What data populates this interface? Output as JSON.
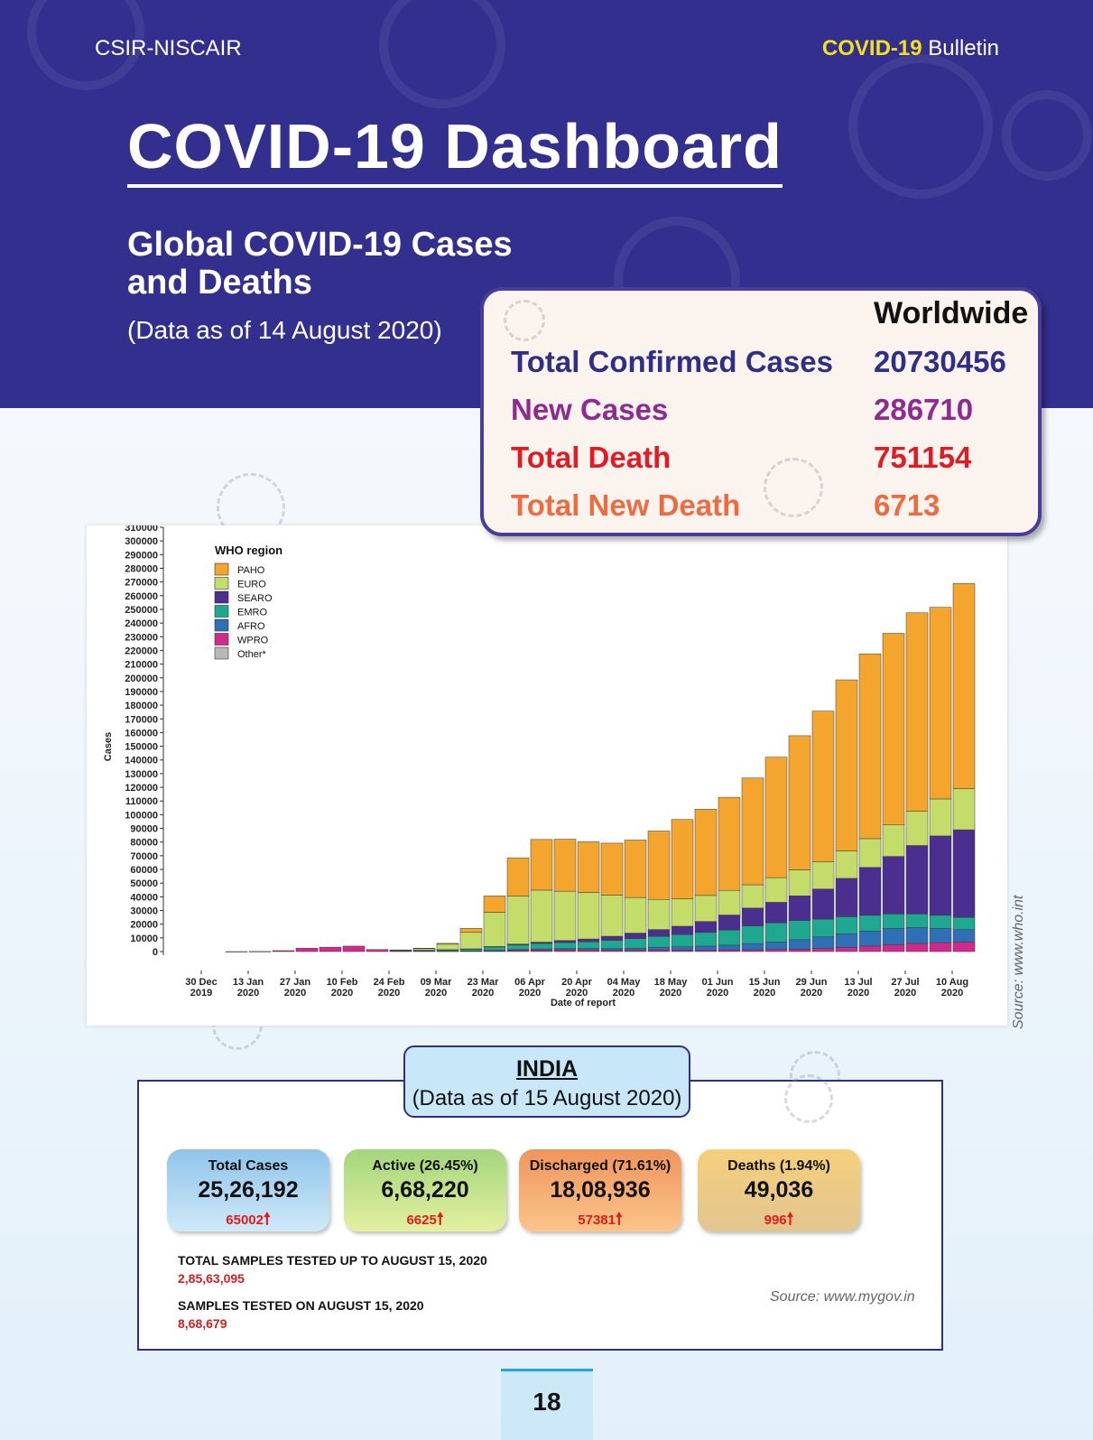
{
  "header": {
    "org": "CSIR-NISCAIR",
    "bulletin_highlight": "COVID-19",
    "bulletin_rest": "Bulletin"
  },
  "title": "COVID-19 Dashboard",
  "global": {
    "title_line1": "Global COVID-19 Cases",
    "title_line2": "and Deaths",
    "date": "(Data as of 14 August 2020)"
  },
  "worldwide": {
    "heading": "Worldwide",
    "rows": [
      {
        "label": "Total Confirmed Cases",
        "value": "20730456",
        "color": "#2f2f86"
      },
      {
        "label": "New Cases",
        "value": "286710",
        "color": "#8e2a90"
      },
      {
        "label": "Total Death",
        "value": "751154",
        "color": "#e01b24"
      },
      {
        "label": "Total New Death",
        "value": "6713",
        "color": "#ee6a40"
      }
    ]
  },
  "chart_data": {
    "type": "bar",
    "stacked": true,
    "ylabel": "Cases",
    "xlabel": "Date of report",
    "ylim": [
      0,
      310000
    ],
    "y_ticks": [
      0,
      10000,
      20000,
      30000,
      40000,
      50000,
      60000,
      70000,
      80000,
      90000,
      100000,
      110000,
      120000,
      130000,
      140000,
      150000,
      160000,
      170000,
      180000,
      190000,
      200000,
      210000,
      220000,
      230000,
      240000,
      250000,
      260000,
      270000,
      280000,
      290000,
      300000,
      310000
    ],
    "x_ticks": [
      {
        "l1": "30 Dec",
        "l2": "2019"
      },
      {
        "l1": "13 Jan",
        "l2": "2020"
      },
      {
        "l1": "27 Jan",
        "l2": "2020"
      },
      {
        "l1": "10 Feb",
        "l2": "2020"
      },
      {
        "l1": "24 Feb",
        "l2": "2020"
      },
      {
        "l1": "09 Mar",
        "l2": "2020"
      },
      {
        "l1": "23 Mar",
        "l2": "2020"
      },
      {
        "l1": "06 Apr",
        "l2": "2020"
      },
      {
        "l1": "20 Apr",
        "l2": "2020"
      },
      {
        "l1": "04 May",
        "l2": "2020"
      },
      {
        "l1": "18 May",
        "l2": "2020"
      },
      {
        "l1": "01 Jun",
        "l2": "2020"
      },
      {
        "l1": "15 Jun",
        "l2": "2020"
      },
      {
        "l1": "29 Jun",
        "l2": "2020"
      },
      {
        "l1": "13 Jul",
        "l2": "2020"
      },
      {
        "l1": "27 Jul",
        "l2": "2020"
      },
      {
        "l1": "10 Aug",
        "l2": "2020"
      }
    ],
    "legend": {
      "title": "WHO region",
      "placement": "top-left",
      "entries": [
        {
          "name": "PAHO",
          "color": "#f3a52d"
        },
        {
          "name": "EURO",
          "color": "#c3dc6a"
        },
        {
          "name": "SEARO",
          "color": "#4a2f8f"
        },
        {
          "name": "EMRO",
          "color": "#1ea88f"
        },
        {
          "name": "AFRO",
          "color": "#2f6fb6"
        },
        {
          "name": "WPRO",
          "color": "#d12a8a"
        },
        {
          "name": "Other*",
          "color": "#b8b8b8"
        }
      ]
    },
    "series_order": [
      "WPRO",
      "AFRO",
      "EMRO",
      "SEARO",
      "EURO",
      "PAHO"
    ],
    "weekly_values": [
      {
        "week": "30 Dec 2019",
        "WPRO": 0,
        "AFRO": 0,
        "EMRO": 0,
        "SEARO": 0,
        "EURO": 0,
        "PAHO": 0
      },
      {
        "week": "06 Jan 2020",
        "WPRO": 10,
        "AFRO": 0,
        "EMRO": 0,
        "SEARO": 0,
        "EURO": 0,
        "PAHO": 0
      },
      {
        "week": "13 Jan 2020",
        "WPRO": 100,
        "AFRO": 0,
        "EMRO": 0,
        "SEARO": 0,
        "EURO": 0,
        "PAHO": 0
      },
      {
        "week": "20 Jan 2020",
        "WPRO": 700,
        "AFRO": 0,
        "EMRO": 0,
        "SEARO": 0,
        "EURO": 0,
        "PAHO": 0
      },
      {
        "week": "27 Jan 2020",
        "WPRO": 2500,
        "AFRO": 0,
        "EMRO": 0,
        "SEARO": 0,
        "EURO": 0,
        "PAHO": 0
      },
      {
        "week": "03 Feb 2020",
        "WPRO": 3200,
        "AFRO": 0,
        "EMRO": 0,
        "SEARO": 0,
        "EURO": 0,
        "PAHO": 0
      },
      {
        "week": "10 Feb 2020",
        "WPRO": 4000,
        "AFRO": 0,
        "EMRO": 0,
        "SEARO": 0,
        "EURO": 0,
        "PAHO": 0
      },
      {
        "week": "17 Feb 2020",
        "WPRO": 1500,
        "AFRO": 0,
        "EMRO": 0,
        "SEARO": 0,
        "EURO": 0,
        "PAHO": 0
      },
      {
        "week": "24 Feb 2020",
        "WPRO": 700,
        "AFRO": 0,
        "EMRO": 200,
        "SEARO": 0,
        "EURO": 300,
        "PAHO": 0
      },
      {
        "week": "02 Mar 2020",
        "WPRO": 500,
        "AFRO": 0,
        "EMRO": 700,
        "SEARO": 0,
        "EURO": 1200,
        "PAHO": 100
      },
      {
        "week": "09 Mar 2020",
        "WPRO": 300,
        "AFRO": 0,
        "EMRO": 1000,
        "SEARO": 100,
        "EURO": 4000,
        "PAHO": 600
      },
      {
        "week": "16 Mar 2020",
        "WPRO": 400,
        "AFRO": 100,
        "EMRO": 1300,
        "SEARO": 200,
        "EURO": 12000,
        "PAHO": 3000
      },
      {
        "week": "23 Mar 2020",
        "WPRO": 600,
        "AFRO": 300,
        "EMRO": 2500,
        "SEARO": 300,
        "EURO": 25000,
        "PAHO": 12000
      },
      {
        "week": "30 Mar 2020",
        "WPRO": 900,
        "AFRO": 500,
        "EMRO": 3500,
        "SEARO": 600,
        "EURO": 35000,
        "PAHO": 28000
      },
      {
        "week": "06 Apr 2020",
        "WPRO": 1200,
        "AFRO": 700,
        "EMRO": 4000,
        "SEARO": 1000,
        "EURO": 38000,
        "PAHO": 37000
      },
      {
        "week": "13 Apr 2020",
        "WPRO": 1300,
        "AFRO": 800,
        "EMRO": 4500,
        "SEARO": 1500,
        "EURO": 36000,
        "PAHO": 38000
      },
      {
        "week": "20 Apr 2020",
        "WPRO": 1200,
        "AFRO": 1000,
        "EMRO": 5000,
        "SEARO": 2000,
        "EURO": 34000,
        "PAHO": 37000
      },
      {
        "week": "27 Apr 2020",
        "WPRO": 1000,
        "AFRO": 1200,
        "EMRO": 6000,
        "SEARO": 3000,
        "EURO": 30000,
        "PAHO": 38000
      },
      {
        "week": "04 May 2020",
        "WPRO": 1000,
        "AFRO": 1500,
        "EMRO": 7000,
        "SEARO": 4000,
        "EURO": 26000,
        "PAHO": 42000
      },
      {
        "week": "11 May 2020",
        "WPRO": 1100,
        "AFRO": 2000,
        "EMRO": 8000,
        "SEARO": 5000,
        "EURO": 22000,
        "PAHO": 50000
      },
      {
        "week": "18 May 2020",
        "WPRO": 1000,
        "AFRO": 2500,
        "EMRO": 9000,
        "SEARO": 6000,
        "EURO": 20000,
        "PAHO": 58000
      },
      {
        "week": "25 May 2020",
        "WPRO": 1000,
        "AFRO": 3000,
        "EMRO": 10000,
        "SEARO": 8000,
        "EURO": 19000,
        "PAHO": 63000
      },
      {
        "week": "01 Jun 2020",
        "WPRO": 1200,
        "AFRO": 3500,
        "EMRO": 11000,
        "SEARO": 11000,
        "EURO": 18000,
        "PAHO": 68000
      },
      {
        "week": "08 Jun 2020",
        "WPRO": 1300,
        "AFRO": 4500,
        "EMRO": 13000,
        "SEARO": 13000,
        "EURO": 17000,
        "PAHO": 78000
      },
      {
        "week": "15 Jun 2020",
        "WPRO": 1500,
        "AFRO": 5500,
        "EMRO": 14000,
        "SEARO": 15000,
        "EURO": 18000,
        "PAHO": 88000
      },
      {
        "week": "22 Jun 2020",
        "WPRO": 1700,
        "AFRO": 7000,
        "EMRO": 14000,
        "SEARO": 18000,
        "EURO": 19000,
        "PAHO": 98000
      },
      {
        "week": "29 Jun 2020",
        "WPRO": 2200,
        "AFRO": 8500,
        "EMRO": 13000,
        "SEARO": 22000,
        "EURO": 20000,
        "PAHO": 110000
      },
      {
        "week": "06 Jul 2020",
        "WPRO": 3000,
        "AFRO": 10000,
        "EMRO": 12500,
        "SEARO": 28000,
        "EURO": 20000,
        "PAHO": 125000
      },
      {
        "week": "13 Jul 2020",
        "WPRO": 4000,
        "AFRO": 11000,
        "EMRO": 11500,
        "SEARO": 35000,
        "EURO": 21000,
        "PAHO": 135000
      },
      {
        "week": "20 Jul 2020",
        "WPRO": 5000,
        "AFRO": 12000,
        "EMRO": 10500,
        "SEARO": 42000,
        "EURO": 23000,
        "PAHO": 140000
      },
      {
        "week": "27 Jul 2020",
        "WPRO": 6000,
        "AFRO": 11500,
        "EMRO": 10000,
        "SEARO": 50000,
        "EURO": 25000,
        "PAHO": 145000
      },
      {
        "week": "03 Aug 2020",
        "WPRO": 6500,
        "AFRO": 10500,
        "EMRO": 9500,
        "SEARO": 58000,
        "EURO": 27000,
        "PAHO": 140000
      },
      {
        "week": "10 Aug 2020",
        "WPRO": 7000,
        "AFRO": 9000,
        "EMRO": 9000,
        "SEARO": 64000,
        "EURO": 30000,
        "PAHO": 150000
      }
    ]
  },
  "source_who": "Source: www.who.int",
  "india": {
    "title": "INDIA",
    "date": "(Data as of 15 August 2020)",
    "cards": [
      {
        "label": "Total Cases",
        "value": "25,26,192",
        "delta": "65002",
        "bg": "linear-gradient(#8fc4ea, #d0e9f9)"
      },
      {
        "label": "Active (26.45%)",
        "value": "6,68,220",
        "delta": "6625",
        "bg": "linear-gradient(#a3d57c, #e4f0a0)"
      },
      {
        "label": "Discharged (71.61%)",
        "value": "18,08,936",
        "delta": "57381",
        "bg": "linear-gradient(#f0955c, #fbc48a)"
      },
      {
        "label": "Deaths (1.94%)",
        "value": "49,036",
        "delta": "996",
        "bg": "linear-gradient(#f5cf7a, #e2c690)"
      }
    ],
    "arrow_glyph": "🠕",
    "samples_total_label": "TOTAL SAMPLES TESTED UP TO AUGUST 15, 2020",
    "samples_total_value": "2,85,63,095",
    "samples_day_label": "SAMPLES TESTED ON AUGUST 15, 2020",
    "samples_day_value": "8,68,679",
    "source": "Source: www.mygov.in"
  },
  "page_number": "18"
}
